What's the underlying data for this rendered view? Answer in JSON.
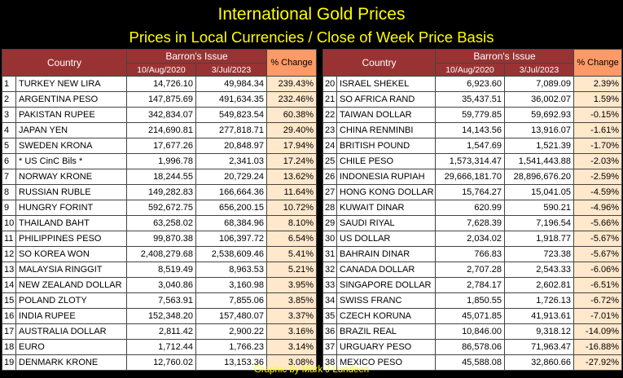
{
  "header": {
    "title": "International Gold Prices",
    "subtitle": "Prices in Local Currencies / Close of Week Price Basis"
  },
  "footer": {
    "credit": "Graphic by Mark J Lundeen"
  },
  "colors": {
    "background": "#000000",
    "title": "#ffff00",
    "header": "#993333",
    "pct_header": "#ff9966",
    "pct_cell": "#ffe8cc"
  },
  "chart_data": {
    "type": "table",
    "columns": {
      "country": "Country",
      "group": "Barron's Issue",
      "date1": "10/Aug/2020",
      "date2": "3/Jul/2023",
      "change": "% Change"
    },
    "left_rows": [
      {
        "rank": "1",
        "country": "TURKEY NEW LIRA",
        "p2020": "14,726.10",
        "p2023": "49,984.34",
        "change": "239.43%"
      },
      {
        "rank": "2",
        "country": "ARGENTINA PESO",
        "p2020": "147,875.69",
        "p2023": "491,634.35",
        "change": "232.46%"
      },
      {
        "rank": "3",
        "country": "PAKISTAN RUPEE",
        "p2020": "342,834.07",
        "p2023": "549,823.54",
        "change": "60.38%"
      },
      {
        "rank": "4",
        "country": "JAPAN YEN",
        "p2020": "214,690.81",
        "p2023": "277,818.71",
        "change": "29.40%"
      },
      {
        "rank": "5",
        "country": "SWEDEN KRONA",
        "p2020": "17,677.26",
        "p2023": "20,848.97",
        "change": "17.94%"
      },
      {
        "rank": "6",
        "country": "* US CinC Bils *",
        "p2020": "1,996.78",
        "p2023": "2,341.03",
        "change": "17.24%"
      },
      {
        "rank": "7",
        "country": "NORWAY KRONE",
        "p2020": "18,244.55",
        "p2023": "20,729.24",
        "change": "13.62%"
      },
      {
        "rank": "8",
        "country": "RUSSIAN RUBLE",
        "p2020": "149,282.83",
        "p2023": "166,664.36",
        "change": "11.64%"
      },
      {
        "rank": "9",
        "country": "HUNGRY FORINT",
        "p2020": "592,672.75",
        "p2023": "656,200.15",
        "change": "10.72%"
      },
      {
        "rank": "10",
        "country": "THAILAND BAHT",
        "p2020": "63,258.02",
        "p2023": "68,384.96",
        "change": "8.10%"
      },
      {
        "rank": "11",
        "country": "PHILIPPINES PESO",
        "p2020": "99,870.38",
        "p2023": "106,397.72",
        "change": "6.54%"
      },
      {
        "rank": "12",
        "country": "SO KOREA WON",
        "p2020": "2,408,279.68",
        "p2023": "2,538,609.46",
        "change": "5.41%"
      },
      {
        "rank": "13",
        "country": "MALAYSIA RINGGIT",
        "p2020": "8,519.49",
        "p2023": "8,963.53",
        "change": "5.21%"
      },
      {
        "rank": "14",
        "country": "NEW ZEALAND DOLLAR",
        "p2020": "3,040.86",
        "p2023": "3,160.98",
        "change": "3.95%"
      },
      {
        "rank": "15",
        "country": "POLAND ZLOTY",
        "p2020": "7,563.91",
        "p2023": "7,855.06",
        "change": "3.85%"
      },
      {
        "rank": "16",
        "country": "INDIA RUPEE",
        "p2020": "152,348.20",
        "p2023": "157,480.07",
        "change": "3.37%"
      },
      {
        "rank": "17",
        "country": "AUSTRALIA DOLLAR",
        "p2020": "2,811.42",
        "p2023": "2,900.22",
        "change": "3.16%"
      },
      {
        "rank": "18",
        "country": "EURO",
        "p2020": "1,712.44",
        "p2023": "1,766.23",
        "change": "3.14%"
      },
      {
        "rank": "19",
        "country": "DENMARK KRONE",
        "p2020": "12,760.02",
        "p2023": "13,153.36",
        "change": "3.08%"
      }
    ],
    "right_rows": [
      {
        "rank": "20",
        "country": "ISRAEL SHEKEL",
        "p2020": "6,923.60",
        "p2023": "7,089.09",
        "change": "2.39%"
      },
      {
        "rank": "21",
        "country": "SO AFRICA RAND",
        "p2020": "35,437.51",
        "p2023": "36,002.07",
        "change": "1.59%"
      },
      {
        "rank": "22",
        "country": "TAIWAN DOLLAR",
        "p2020": "59,779.85",
        "p2023": "59,692.93",
        "change": "-0.15%"
      },
      {
        "rank": "23",
        "country": "CHINA RENMINBI",
        "p2020": "14,143.56",
        "p2023": "13,916.07",
        "change": "-1.61%"
      },
      {
        "rank": "24",
        "country": "BRITISH POUND",
        "p2020": "1,547.69",
        "p2023": "1,521.39",
        "change": "-1.70%"
      },
      {
        "rank": "25",
        "country": "CHILE PESO",
        "p2020": "1,573,314.47",
        "p2023": "1,541,443.88",
        "change": "-2.03%"
      },
      {
        "rank": "26",
        "country": "INDONESIA RUPIAH",
        "p2020": "29,666,181.70",
        "p2023": "28,896,676.20",
        "change": "-2.59%"
      },
      {
        "rank": "27",
        "country": "HONG KONG DOLLAR",
        "p2020": "15,764.27",
        "p2023": "15,041.05",
        "change": "-4.59%"
      },
      {
        "rank": "28",
        "country": "KUWAIT DINAR",
        "p2020": "620.99",
        "p2023": "590.21",
        "change": "-4.96%"
      },
      {
        "rank": "29",
        "country": "SAUDI RIYAL",
        "p2020": "7,628.39",
        "p2023": "7,196.54",
        "change": "-5.66%"
      },
      {
        "rank": "30",
        "country": "US DOLLAR",
        "p2020": "2,034.02",
        "p2023": "1,918.77",
        "change": "-5.67%"
      },
      {
        "rank": "31",
        "country": "BAHRAIN DINAR",
        "p2020": "766.83",
        "p2023": "723.38",
        "change": "-5.67%"
      },
      {
        "rank": "32",
        "country": "CANADA DOLLAR",
        "p2020": "2,707.28",
        "p2023": "2,543.33",
        "change": "-6.06%"
      },
      {
        "rank": "33",
        "country": "SINGAPORE DOLLAR",
        "p2020": "2,784.17",
        "p2023": "2,602.81",
        "change": "-6.51%"
      },
      {
        "rank": "34",
        "country": "SWISS FRANC",
        "p2020": "1,850.55",
        "p2023": "1,726.13",
        "change": "-6.72%"
      },
      {
        "rank": "35",
        "country": "CZECH KORUNA",
        "p2020": "45,071.85",
        "p2023": "41,913.61",
        "change": "-7.01%"
      },
      {
        "rank": "36",
        "country": "BRAZIL REAL",
        "p2020": "10,846.00",
        "p2023": "9,318.12",
        "change": "-14.09%"
      },
      {
        "rank": "37",
        "country": "URGUARY PESO",
        "p2020": "86,578.06",
        "p2023": "71,963.47",
        "change": "-16.88%"
      },
      {
        "rank": "38",
        "country": "MEXICO PESO",
        "p2020": "45,588.08",
        "p2023": "32,860.66",
        "change": "-27.92%"
      }
    ]
  }
}
